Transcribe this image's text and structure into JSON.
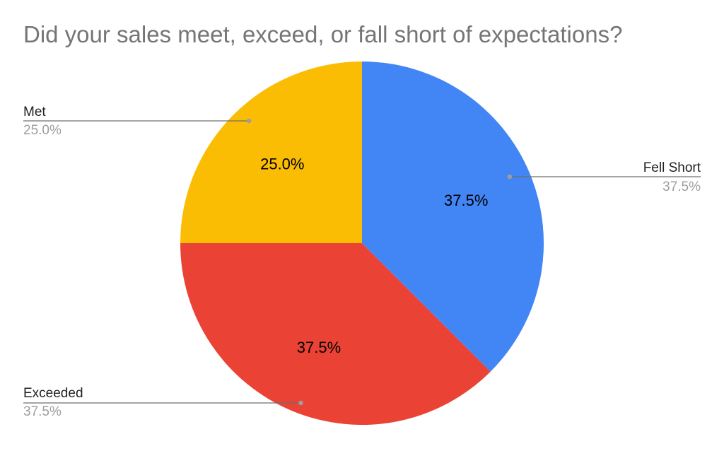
{
  "chart_data": {
    "type": "pie",
    "title": "Did your sales meet, exceed, or fall short of expectations?",
    "slices": [
      {
        "name": "Fell Short",
        "value": 37.5,
        "label": "37.5%",
        "color": "#4285F4"
      },
      {
        "name": "Exceeded",
        "value": 37.5,
        "label": "37.5%",
        "color": "#EA4335"
      },
      {
        "name": "Met",
        "value": 25.0,
        "label": "25.0%",
        "color": "#FBBC04"
      }
    ],
    "start_angle_deg": 0,
    "direction": "clockwise",
    "legend": "none",
    "label_placement": "inside-and-outside-with-leader-lines"
  }
}
